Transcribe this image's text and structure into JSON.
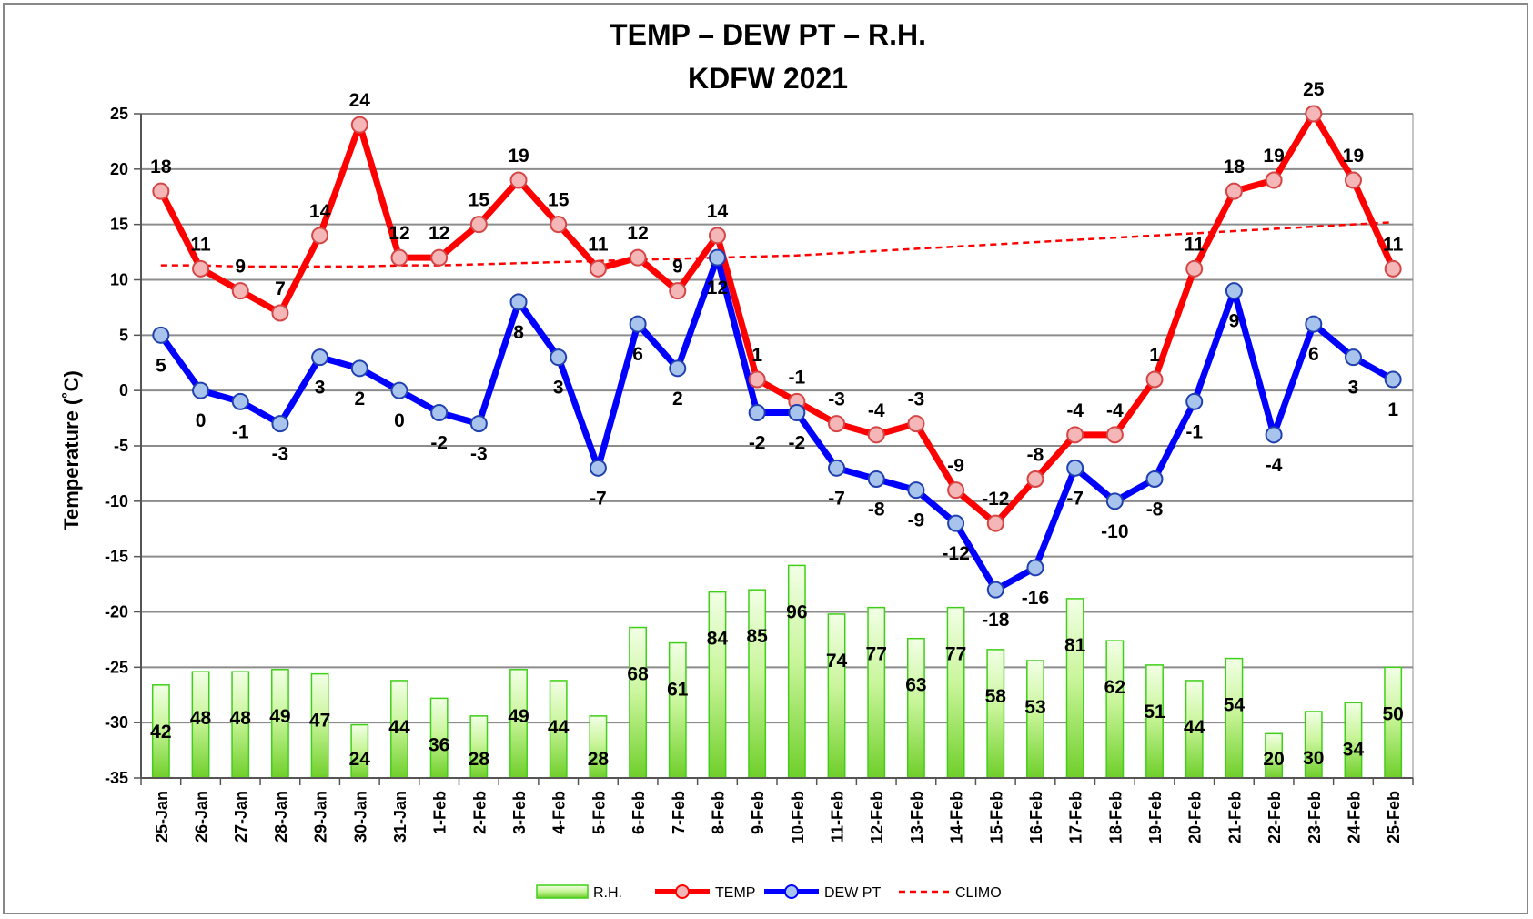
{
  "chart_data": {
    "type": "line",
    "title": "TEMP – DEW PT – R.H.",
    "subtitle": "KDFW 2021",
    "ylabel": "Temperature (˚C)",
    "xlabel": "",
    "ylim": [
      -35,
      25
    ],
    "yticks": [
      25,
      20,
      15,
      10,
      5,
      0,
      -5,
      -10,
      -15,
      -20,
      -25,
      -30,
      -35
    ],
    "grid": true,
    "legend_position": "bottom",
    "categories": [
      "25-Jan",
      "26-Jan",
      "27-Jan",
      "28-Jan",
      "29-Jan",
      "30-Jan",
      "31-Jan",
      "1-Feb",
      "2-Feb",
      "3-Feb",
      "4-Feb",
      "5-Feb",
      "6-Feb",
      "7-Feb",
      "8-Feb",
      "9-Feb",
      "10-Feb",
      "11-Feb",
      "12-Feb",
      "13-Feb",
      "14-Feb",
      "15-Feb",
      "16-Feb",
      "17-Feb",
      "18-Feb",
      "19-Feb",
      "20-Feb",
      "21-Feb",
      "22-Feb",
      "23-Feb",
      "24-Feb",
      "25-Feb"
    ],
    "series": [
      {
        "name": "R.H.",
        "kind": "bar",
        "color": "#7fe04a",
        "values": [
          42,
          48,
          48,
          49,
          47,
          24,
          44,
          36,
          28,
          49,
          44,
          28,
          68,
          61,
          84,
          85,
          96,
          74,
          77,
          63,
          77,
          58,
          53,
          81,
          62,
          51,
          44,
          54,
          20,
          30,
          34,
          50
        ]
      },
      {
        "name": "TEMP",
        "kind": "line",
        "color": "#ff0000",
        "marker_fill": "#f4b6b6",
        "values": [
          18,
          11,
          9,
          7,
          14,
          24,
          12,
          12,
          15,
          19,
          15,
          11,
          12,
          9,
          14,
          1,
          -1,
          -3,
          -4,
          -3,
          -9,
          -12,
          -8,
          -4,
          -4,
          1,
          11,
          18,
          19,
          25,
          19,
          11
        ]
      },
      {
        "name": "DEW PT",
        "kind": "line",
        "color": "#0000ff",
        "marker_fill": "#a9c4ec",
        "values": [
          5,
          0,
          -1,
          -3,
          3,
          2,
          0,
          -2,
          -3,
          8,
          3,
          -7,
          6,
          2,
          12,
          -2,
          -2,
          -7,
          -8,
          -9,
          -12,
          -18,
          -16,
          -7,
          -10,
          -8,
          -1,
          9,
          -4,
          6,
          3,
          1
        ]
      },
      {
        "name": "CLIMO",
        "kind": "dashed",
        "color": "#ff0000",
        "values": [
          11.3,
          11.3,
          11.2,
          11.2,
          11.2,
          11.2,
          11.3,
          11.3,
          11.4,
          11.5,
          11.6,
          11.7,
          11.8,
          11.9,
          12.0,
          12.1,
          12.2,
          12.4,
          12.6,
          12.8,
          13.0,
          13.2,
          13.4,
          13.6,
          13.8,
          14.0,
          14.2,
          14.4,
          14.6,
          14.8,
          15.0,
          15.2
        ]
      }
    ]
  }
}
